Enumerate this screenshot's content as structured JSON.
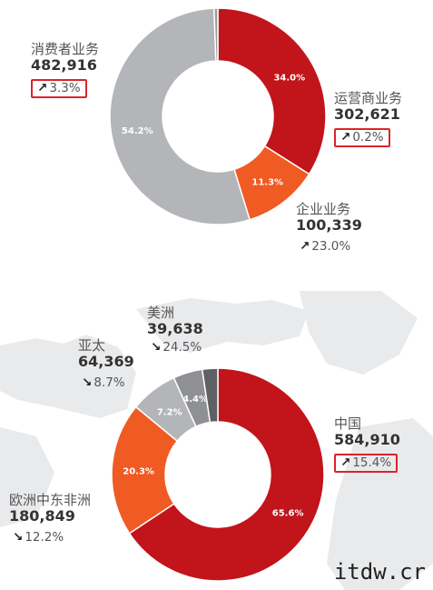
{
  "colors": {
    "red": "#c2141b",
    "orange": "#f05a23",
    "light_gray": "#b4b5b8",
    "mid_gray": "#8f9094",
    "dark_gray": "#5f6063",
    "highlight_box": "#d9252c",
    "map": "#e9eaec"
  },
  "chart_data": [
    {
      "type": "pie",
      "style": "donut",
      "slices": [
        {
          "label": "运营商业务",
          "value": 302621,
          "percent_label": "34.0%",
          "change": "0.2%",
          "direction": "up",
          "highlighted": true,
          "color": "#c2141b"
        },
        {
          "label": "企业业务",
          "value": 100339,
          "percent_label": "11.3%",
          "change": "23.0%",
          "direction": "up",
          "highlighted": false,
          "color": "#f05a23"
        },
        {
          "label": "消费者业务",
          "value": 482916,
          "percent_label": "54.2%",
          "change": "3.3%",
          "direction": "up",
          "highlighted": true,
          "color": "#b4b5b8"
        },
        {
          "label": "",
          "value": 5000,
          "percent_label": "",
          "change": "",
          "direction": "",
          "highlighted": false,
          "color": "#9a9b9f"
        }
      ]
    },
    {
      "type": "pie",
      "style": "donut",
      "slices": [
        {
          "label": "中国",
          "value": 584910,
          "percent_label": "65.6%",
          "change": "15.4%",
          "direction": "up",
          "highlighted": true,
          "color": "#c2141b"
        },
        {
          "label": "欧洲中东非洲",
          "value": 180849,
          "percent_label": "20.3%",
          "change": "12.2%",
          "direction": "down",
          "highlighted": false,
          "color": "#f05a23"
        },
        {
          "label": "亚太",
          "value": 64369,
          "percent_label": "7.2%",
          "change": "8.7%",
          "direction": "down",
          "highlighted": false,
          "color": "#b4b5b8"
        },
        {
          "label": "美洲",
          "value": 39638,
          "percent_label": "4.4%",
          "change": "24.5%",
          "direction": "down",
          "highlighted": false,
          "color": "#8f9094"
        },
        {
          "label": "",
          "value": 21000,
          "percent_label": "",
          "change": "",
          "direction": "",
          "highlighted": false,
          "color": "#5f6063"
        }
      ]
    }
  ],
  "labels": {
    "top": {
      "consumer": {
        "name": "消费者业务",
        "value": "482,916",
        "arrow": "↗",
        "change": "3.3%"
      },
      "carrier": {
        "name": "运营商业务",
        "value": "302,621",
        "arrow": "↗",
        "change": "0.2%"
      },
      "enterprise": {
        "name": "企业业务",
        "value": "100,339",
        "arrow": "↗",
        "change": "23.0%"
      }
    },
    "bottom": {
      "americas": {
        "name": "美洲",
        "value": "39,638",
        "arrow": "↘",
        "change": "24.5%"
      },
      "apac": {
        "name": "亚太",
        "value": "64,369",
        "arrow": "↘",
        "change": "8.7%"
      },
      "china": {
        "name": "中国",
        "value": "584,910",
        "arrow": "↗",
        "change": "15.4%"
      },
      "emea": {
        "name": "欧洲中东非洲",
        "value": "180,849",
        "arrow": "↘",
        "change": "12.2%"
      }
    }
  },
  "watermark": "itdw.cr"
}
